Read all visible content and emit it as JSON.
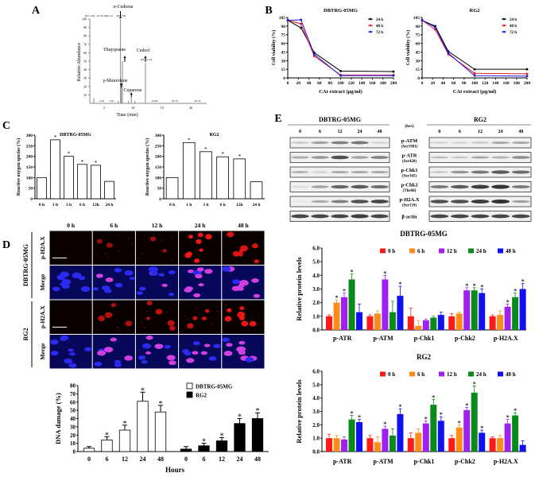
{
  "panels": {
    "a": "A",
    "b": "B",
    "c": "C",
    "d": "D",
    "e": "E"
  },
  "chart_data": [
    {
      "id": "A",
      "type": "line",
      "xlabel": "Time (min)",
      "ylabel": "Relative Abundance",
      "xlim": [
        2.5,
        22.76
      ],
      "ylim": [
        0,
        100
      ],
      "xticks": [
        5,
        10,
        15,
        20
      ],
      "yticks": [
        10,
        20,
        30,
        40,
        50,
        60,
        70,
        80,
        90,
        100
      ],
      "header": "RT: 2.50 - 22.76  SM: 1G",
      "peaks": [
        {
          "rt": 3.2,
          "y": 6
        },
        {
          "rt": 7.4,
          "y": 3
        },
        {
          "rt": 7.81,
          "y": 100,
          "name": "α-Cedrene",
          "rt_label": "RT: 7.81"
        },
        {
          "rt": 7.95,
          "y": 22,
          "name": "γ-Muurolene"
        },
        {
          "rt": 8.15,
          "y": 50,
          "name": "Thujopsene"
        },
        {
          "rt": 9.2,
          "y": 3
        },
        {
          "rt": 9.7,
          "y": 8,
          "name": "Cuparene"
        },
        {
          "rt": 10.3,
          "y": 3
        },
        {
          "rt": 12.14,
          "y": 48,
          "name": "Cedrol",
          "rt_label": "RT: 12.14"
        }
      ],
      "rt_marks": [
        "4.16",
        "5.91",
        "13.29",
        "16.79",
        "20.76"
      ],
      "rt_mark_pos": [
        4.16,
        5.91,
        13.29,
        16.79,
        20.76
      ],
      "grid": false
    },
    {
      "id": "B1",
      "type": "line",
      "title": "DBTRG-05MG",
      "xlabel": "CAt extract (μg/ml)",
      "ylabel": "Cell viability (%)",
      "xlim": [
        0,
        200
      ],
      "ylim": [
        0,
        105
      ],
      "xticks": [
        0,
        20,
        40,
        60,
        80,
        100,
        120,
        140,
        160,
        180,
        200
      ],
      "yticks": [
        0,
        15,
        30,
        45,
        60,
        75,
        90,
        105
      ],
      "x": [
        0,
        25,
        50,
        100,
        200
      ],
      "legend": "top-right",
      "series": [
        {
          "name": "24 h",
          "color": "#000000",
          "values": [
            100,
            87,
            44,
            12,
            11
          ]
        },
        {
          "name": "48 h",
          "color": "#e8192c",
          "values": [
            100,
            94,
            38,
            5,
            5
          ]
        },
        {
          "name": "72 h",
          "color": "#1a1adc",
          "values": [
            100,
            101,
            41,
            4,
            4
          ]
        }
      ]
    },
    {
      "id": "B2",
      "type": "line",
      "title": "RG2",
      "xlabel": "CAt extract (μg/ml)",
      "ylabel": "Cell viability (%)",
      "xlim": [
        0,
        200
      ],
      "ylim": [
        0,
        105
      ],
      "xticks": [
        0,
        20,
        40,
        60,
        80,
        100,
        120,
        140,
        160,
        180,
        200
      ],
      "yticks": [
        0,
        15,
        30,
        45,
        60,
        75,
        90,
        105
      ],
      "x": [
        0,
        25,
        50,
        100,
        200
      ],
      "legend": "top-right",
      "series": [
        {
          "name": "24 h",
          "color": "#000000",
          "values": [
            100,
            90,
            46,
            15,
            15
          ]
        },
        {
          "name": "48 h",
          "color": "#e8192c",
          "values": [
            100,
            84,
            41,
            8,
            7
          ]
        },
        {
          "name": "72 h",
          "color": "#1a1adc",
          "values": [
            100,
            88,
            43,
            4,
            3
          ]
        }
      ]
    },
    {
      "id": "C1",
      "type": "bar",
      "title": "DBTRG-05MG",
      "ylabel": "Reactive oxygen species (%)",
      "categories": [
        "0 h",
        "1 h",
        "3 h",
        "6 h",
        "12h",
        "24 h"
      ],
      "values": [
        100,
        278,
        200,
        162,
        158,
        82
      ],
      "significant": [
        false,
        true,
        true,
        true,
        true,
        false
      ],
      "ylim": [
        0,
        300
      ],
      "yticks": [
        0,
        50,
        100,
        150,
        200,
        250,
        300
      ]
    },
    {
      "id": "C2",
      "type": "bar",
      "title": "RG2",
      "ylabel": "Reactive oxygen species (%)",
      "categories": [
        "0 h",
        "1 h",
        "3 h",
        "6 h",
        "12h",
        "24 h"
      ],
      "values": [
        100,
        265,
        222,
        198,
        188,
        80
      ],
      "significant": [
        false,
        true,
        true,
        true,
        true,
        false
      ],
      "ylim": [
        0,
        300
      ],
      "yticks": [
        0,
        50,
        100,
        150,
        200,
        250,
        300
      ]
    },
    {
      "id": "D",
      "type": "bar",
      "xlabel": "Hours",
      "ylabel": "DNA damage (%)",
      "categories": [
        "0",
        "6",
        "12",
        "24",
        "48"
      ],
      "ylim": [
        0,
        80
      ],
      "yticks": [
        0,
        10,
        20,
        30,
        40,
        50,
        60,
        70,
        80
      ],
      "legend": "top-right",
      "series": [
        {
          "name": "DBTRG-05MG",
          "color": "#ffffff",
          "values": [
            4,
            14,
            26,
            61,
            48
          ],
          "errors": [
            2,
            4,
            6,
            11,
            8
          ],
          "significant": [
            false,
            true,
            true,
            true,
            true
          ]
        },
        {
          "name": "RG2",
          "color": "#000000",
          "values": [
            3,
            7,
            13,
            34,
            40
          ],
          "errors": [
            3,
            3,
            4,
            6,
            7
          ],
          "significant": [
            false,
            true,
            true,
            true,
            true
          ]
        }
      ]
    },
    {
      "id": "E1",
      "type": "bar",
      "title": "DBTRG-05MG",
      "ylabel": "Relative protein levels",
      "categories": [
        "p-ATR",
        "p-ATM",
        "p-Chk1",
        "p-Chk2",
        "p-H2A.X"
      ],
      "ylim": [
        0,
        6
      ],
      "yticks": [
        "0.0",
        "1.0",
        "2.0",
        "3.0",
        "4.0",
        "5.0",
        "6.0"
      ],
      "legend": "top-right",
      "series": [
        {
          "name": "0 h",
          "color": "#ff1a1a",
          "values": [
            1.0,
            1.0,
            1.0,
            1.0,
            1.0
          ],
          "errors": [
            0.1,
            0.1,
            0.6,
            0.2,
            0.1
          ],
          "significant": [
            false,
            false,
            false,
            false,
            false
          ]
        },
        {
          "name": "6 h",
          "color": "#ff8c1a",
          "values": [
            2.0,
            1.2,
            0.3,
            1.2,
            1.1
          ],
          "errors": [
            0.2,
            0.2,
            0.4,
            0.1,
            0.3
          ],
          "significant": [
            true,
            false,
            false,
            false,
            false
          ]
        },
        {
          "name": "12 h",
          "color": "#a020f0",
          "values": [
            2.4,
            3.7,
            0.7,
            2.9,
            1.7
          ],
          "errors": [
            0.3,
            0.3,
            0.1,
            0.2,
            0.2
          ],
          "significant": [
            true,
            true,
            false,
            true,
            true
          ]
        },
        {
          "name": "24 h",
          "color": "#0a8a1a",
          "values": [
            3.7,
            1.3,
            0.9,
            2.9,
            2.4
          ],
          "errors": [
            0.4,
            0.8,
            0.1,
            0.2,
            0.3
          ],
          "significant": [
            true,
            false,
            false,
            true,
            true
          ]
        },
        {
          "name": "48 h",
          "color": "#1010f0",
          "values": [
            1.3,
            2.5,
            1.1,
            2.7,
            3.0
          ],
          "errors": [
            0.6,
            0.7,
            0.2,
            0.3,
            0.4
          ],
          "significant": [
            false,
            true,
            false,
            true,
            true
          ]
        }
      ]
    },
    {
      "id": "E2",
      "type": "bar",
      "title": "RG2",
      "ylabel": "Relative protein levels",
      "categories": [
        "p-ATR",
        "p-ATM",
        "p-Chk1",
        "p-Chk2",
        "p-H2A.X"
      ],
      "ylim": [
        0,
        6
      ],
      "yticks": [
        "0.0",
        "1.0",
        "2.0",
        "3.0",
        "4.0",
        "5.0",
        "6.0"
      ],
      "legend": "top-right",
      "series": [
        {
          "name": "0 h",
          "color": "#ff1a1a",
          "values": [
            1.0,
            1.0,
            1.0,
            1.0,
            1.0
          ],
          "errors": [
            0.3,
            0.2,
            0.4,
            0.2,
            0.1
          ],
          "significant": [
            false,
            false,
            false,
            false,
            false
          ]
        },
        {
          "name": "6 h",
          "color": "#ff8c1a",
          "values": [
            1.0,
            0.7,
            1.4,
            1.8,
            1.0
          ],
          "errors": [
            0.2,
            0.4,
            0.3,
            0.2,
            0.2
          ],
          "significant": [
            false,
            false,
            false,
            true,
            false
          ]
        },
        {
          "name": "12 h",
          "color": "#a020f0",
          "values": [
            0.9,
            1.7,
            2.1,
            3.1,
            2.1
          ],
          "errors": [
            0.2,
            0.2,
            0.2,
            0.2,
            0.3
          ],
          "significant": [
            false,
            true,
            true,
            true,
            true
          ]
        },
        {
          "name": "24 h",
          "color": "#0a8a1a",
          "values": [
            2.4,
            1.2,
            3.5,
            4.4,
            2.7
          ],
          "errors": [
            0.3,
            0.5,
            0.4,
            0.5,
            0.2
          ],
          "significant": [
            true,
            false,
            true,
            true,
            true
          ]
        },
        {
          "name": "48 h",
          "color": "#1010f0",
          "values": [
            2.2,
            2.8,
            2.3,
            1.4,
            0.5
          ],
          "errors": [
            0.2,
            0.4,
            0.3,
            0.2,
            0.3
          ],
          "significant": [
            true,
            true,
            true,
            true,
            false
          ]
        }
      ]
    }
  ],
  "microscopy": {
    "timepoints": [
      "0 h",
      "6 h",
      "12 h",
      "24 h",
      "48 h"
    ],
    "cell_lines": [
      "DBTRG-05MG",
      "RG2"
    ],
    "rows": [
      "p-H2A.X",
      "Merge"
    ],
    "scale_bar": "25 μm",
    "red_signal": [
      [
        0,
        0.15,
        0.3,
        0.9,
        0.7
      ],
      [
        0,
        0.35,
        0.45,
        0.55,
        0.8
      ]
    ]
  },
  "western_blot": {
    "cell_lines": [
      "DBTRG-05MG",
      "RG2"
    ],
    "unit": "(hrs)",
    "timepoints": [
      "0",
      "6",
      "12",
      "24",
      "48"
    ],
    "rows": [
      {
        "protein": "p-ATM",
        "site": "(Ser1981)",
        "dbtrg": [
          0.2,
          0.4,
          0.55,
          0.6,
          0.15
        ],
        "rg2": [
          0.15,
          0.15,
          0.2,
          0.35,
          0.35
        ]
      },
      {
        "protein": "p-ATR",
        "site": "(Ser428)",
        "dbtrg": [
          0.35,
          0.45,
          0.8,
          0.4,
          0.55
        ],
        "rg2": [
          0.25,
          0.2,
          0.35,
          0.3,
          0.5
        ]
      },
      {
        "protein": "p-Chk1",
        "site": "(Ser345)",
        "dbtrg": [
          0.3,
          0.15,
          0.35,
          0.35,
          0.35
        ],
        "rg2": [
          0.2,
          0.45,
          0.6,
          0.75,
          0.65
        ]
      },
      {
        "protein": "p-Chk2",
        "site": "(Thr68)",
        "dbtrg": [
          0.1,
          0.4,
          0.7,
          0.75,
          0.65
        ],
        "rg2": [
          0.6,
          0.75,
          0.9,
          0.95,
          0.6
        ]
      },
      {
        "protein": "p-H2A.X",
        "site": "(Ser139)",
        "dbtrg": [
          0.05,
          0.35,
          0.55,
          0.8,
          0.85
        ],
        "rg2": [
          0.8,
          0.8,
          0.9,
          0.95,
          0.4
        ]
      },
      {
        "protein": "β-actin",
        "site": "",
        "dbtrg": [
          0.85,
          0.85,
          0.85,
          0.9,
          0.85
        ],
        "rg2": [
          0.85,
          0.85,
          0.85,
          0.85,
          0.85
        ]
      }
    ]
  }
}
